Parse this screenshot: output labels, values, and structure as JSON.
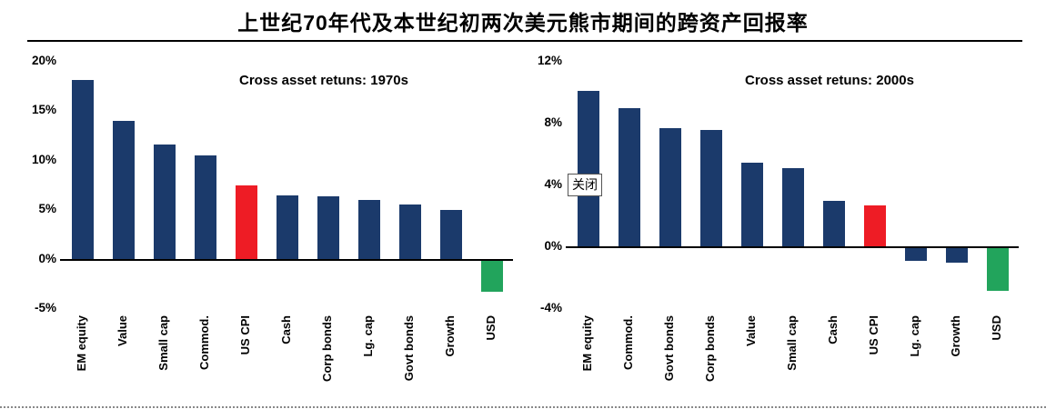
{
  "title": "上世纪70年代及本世纪初两次美元熊市期间的跨资产回报率",
  "overlay": {
    "close_label": "关闭"
  },
  "colors": {
    "bar_default": "#1b3a6b",
    "bar_cpi": "#ee1c25",
    "bar_usd": "#22a45c"
  },
  "chart_data": [
    {
      "type": "bar",
      "title": "Cross asset retuns: 1970s",
      "categories": [
        "EM equity",
        "Value",
        "Small cap",
        "Commod.",
        "US CPI",
        "Cash",
        "Corp bonds",
        "Lg. cap",
        "Govt bonds",
        "Growth",
        "USD"
      ],
      "values": [
        18.2,
        14.0,
        11.6,
        10.5,
        7.5,
        6.5,
        6.4,
        6.0,
        5.6,
        5.0,
        -3.3
      ],
      "bar_colors": [
        "#1b3a6b",
        "#1b3a6b",
        "#1b3a6b",
        "#1b3a6b",
        "#ee1c25",
        "#1b3a6b",
        "#1b3a6b",
        "#1b3a6b",
        "#1b3a6b",
        "#1b3a6b",
        "#22a45c"
      ],
      "ylim": [
        -5,
        20
      ],
      "yticks": [
        20,
        15,
        10,
        5,
        0,
        -5
      ],
      "ytick_labels": [
        "20%",
        "15%",
        "10%",
        "5%",
        "0%",
        "-5%"
      ],
      "grid": false,
      "legend": "none"
    },
    {
      "type": "bar",
      "title": "Cross asset retuns: 2000s",
      "categories": [
        "EM equity",
        "Commod.",
        "Govt bonds",
        "Corp bonds",
        "Value",
        "Small cap",
        "Cash",
        "US CPI",
        "Lg. cap",
        "Growth",
        "USD"
      ],
      "values": [
        10.1,
        9.0,
        7.7,
        7.6,
        5.5,
        5.1,
        3.0,
        2.7,
        -0.9,
        -1.0,
        -2.8
      ],
      "bar_colors": [
        "#1b3a6b",
        "#1b3a6b",
        "#1b3a6b",
        "#1b3a6b",
        "#1b3a6b",
        "#1b3a6b",
        "#1b3a6b",
        "#ee1c25",
        "#1b3a6b",
        "#1b3a6b",
        "#22a45c"
      ],
      "ylim": [
        -4,
        12
      ],
      "yticks": [
        12,
        8,
        4,
        0,
        -4
      ],
      "ytick_labels": [
        "12%",
        "8%",
        "4%",
        "0%",
        "-4%"
      ],
      "grid": false,
      "legend": "none"
    }
  ]
}
